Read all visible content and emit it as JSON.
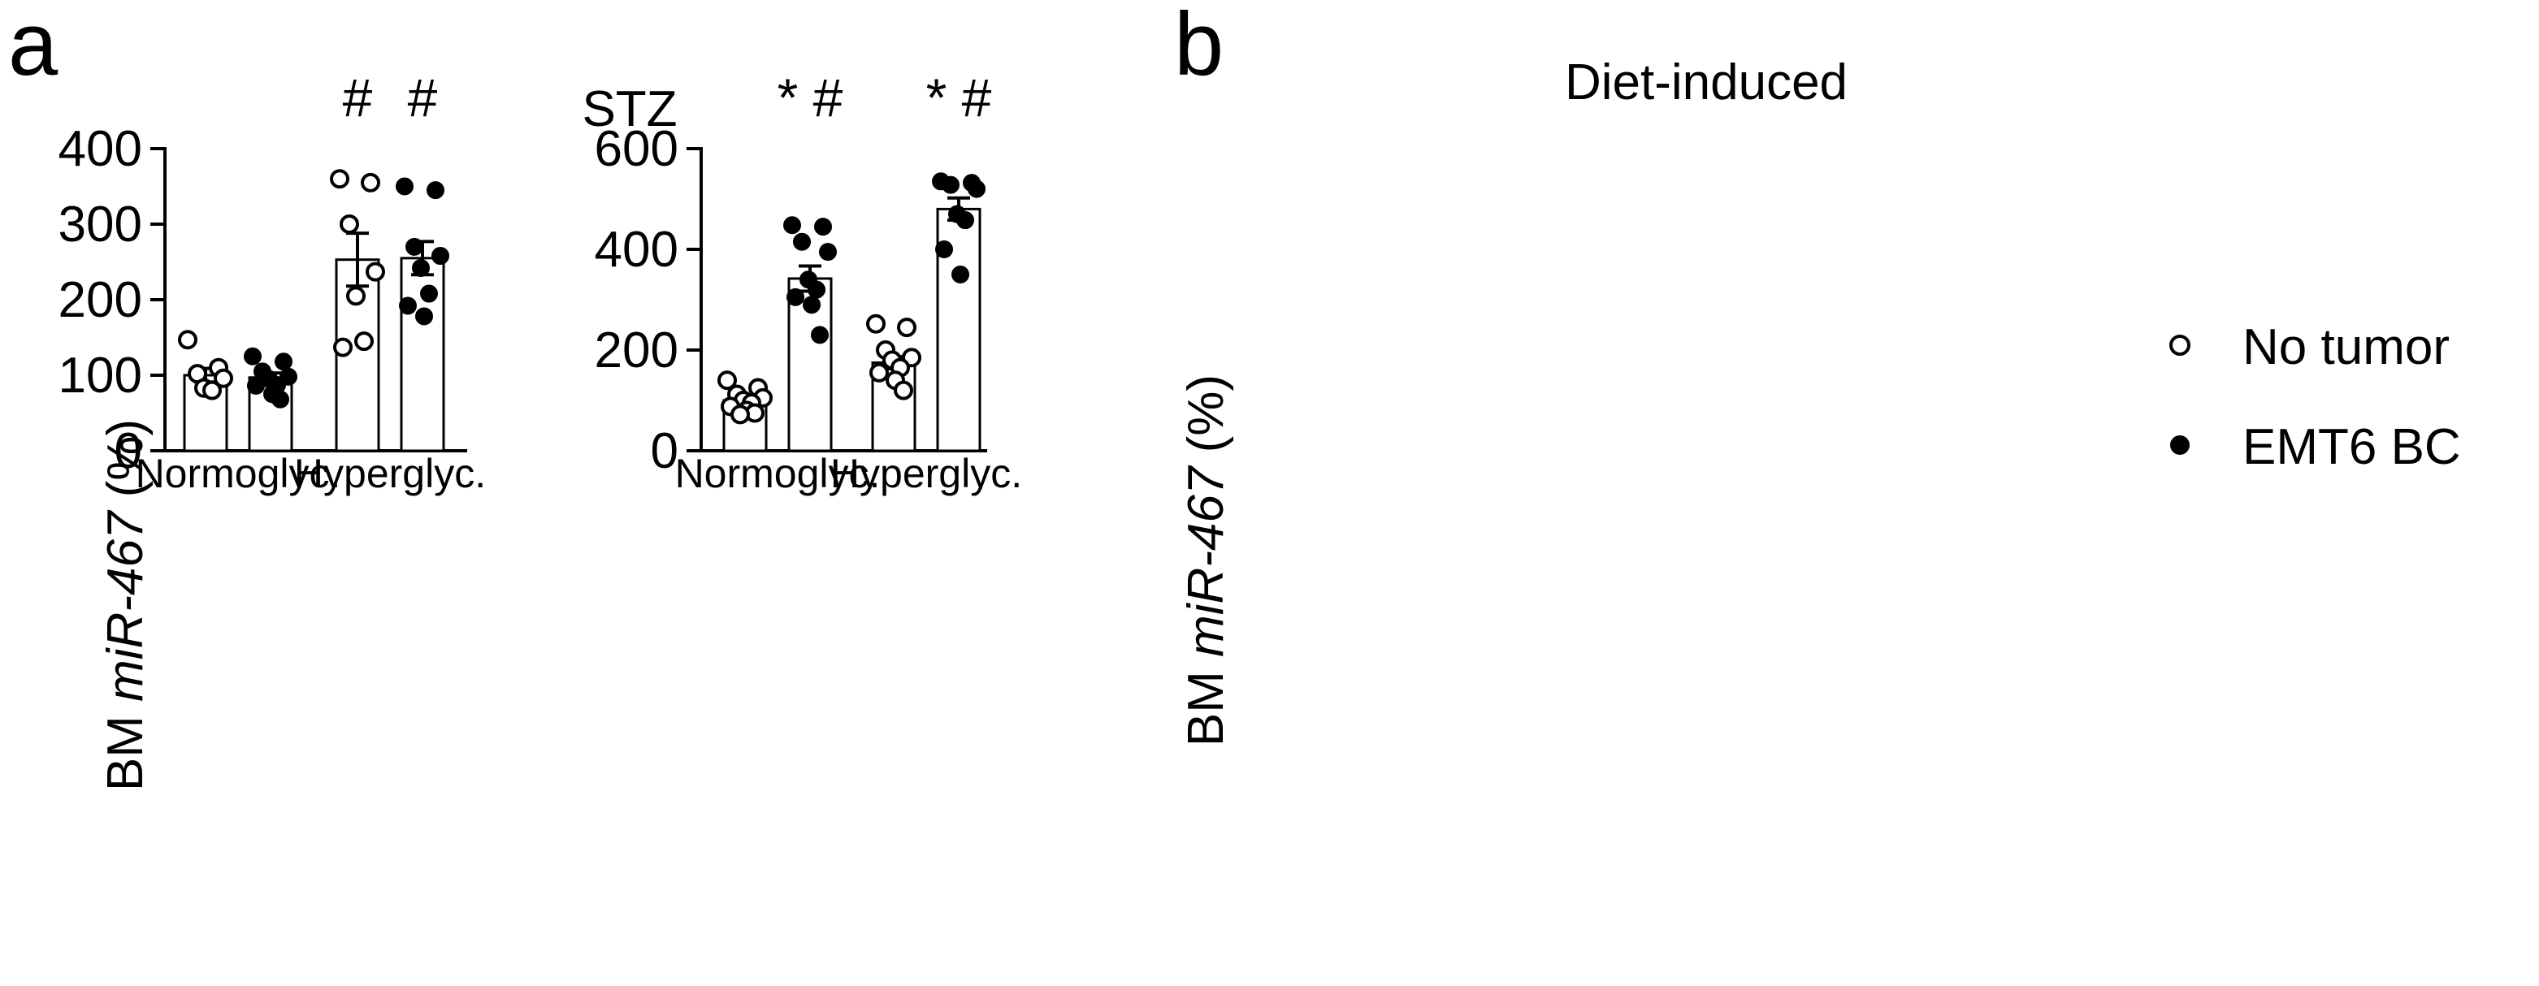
{
  "chart_data": [
    {
      "type": "bar",
      "panel_label": "a",
      "title": "STZ",
      "ylabel_prefix": "BM ",
      "ylabel_italic": "miR-467",
      "ylabel_suffix": " (%)",
      "ylim": [
        0,
        400
      ],
      "yticks": [
        "0",
        "100",
        "200",
        "300",
        "400"
      ],
      "groups": [
        "Normoglyc.",
        "Hyperglyc."
      ],
      "series": [
        {
          "name": "No tumor",
          "marker": "open",
          "means": [
            100,
            253
          ],
          "sems": [
            9,
            35
          ],
          "points": [
            [
              147,
              110,
              102,
              96,
              83,
              80
            ],
            [
              360,
              355,
              300,
              237,
              205,
              145,
              137
            ]
          ]
        },
        {
          "name": "EMT6 BC",
          "marker": "filled",
          "means": [
            97,
            255
          ],
          "sems": [
            6,
            22
          ],
          "points": [
            [
              125,
              118,
              105,
              98,
              95,
              87,
              86,
              75,
              68
            ],
            [
              350,
              345,
              270,
              258,
              242,
              208,
              192,
              178
            ]
          ]
        }
      ],
      "annotations": [
        [
          "",
          ""
        ],
        [
          "#",
          "#"
        ]
      ]
    },
    {
      "type": "bar",
      "panel_label": "b",
      "title": "Diet-induced",
      "ylabel_prefix": "BM ",
      "ylabel_italic": "miR-467",
      "ylabel_suffix": " (%)",
      "ylim": [
        0,
        600
      ],
      "yticks": [
        "0",
        "200",
        "400",
        "600"
      ],
      "groups": [
        "Normoglyc.",
        "Hyperglyc."
      ],
      "series": [
        {
          "name": "No tumor",
          "marker": "open",
          "means": [
            100,
            175
          ],
          "sems": [
            9,
            12
          ],
          "points": [
            [
              140,
              125,
              112,
              105,
              100,
              95,
              88,
              80,
              75,
              72
            ],
            [
              252,
              245,
              200,
              185,
              180,
              165,
              155,
              140,
              120
            ]
          ]
        },
        {
          "name": "EMT6 BC",
          "marker": "filled",
          "means": [
            342,
            480
          ],
          "sems": [
            25,
            22
          ],
          "points": [
            [
              448,
              445,
              415,
              395,
              340,
              320,
              305,
              290,
              230
            ],
            [
              535,
              532,
              528,
              520,
              470,
              458,
              400,
              350
            ]
          ]
        }
      ],
      "annotations": [
        [
          "",
          "* #"
        ],
        [
          "",
          "* #"
        ]
      ]
    }
  ],
  "legend": {
    "position": "right",
    "items": [
      {
        "label": "No tumor",
        "marker": "open"
      },
      {
        "label": "EMT6 BC",
        "marker": "filled"
      }
    ]
  }
}
